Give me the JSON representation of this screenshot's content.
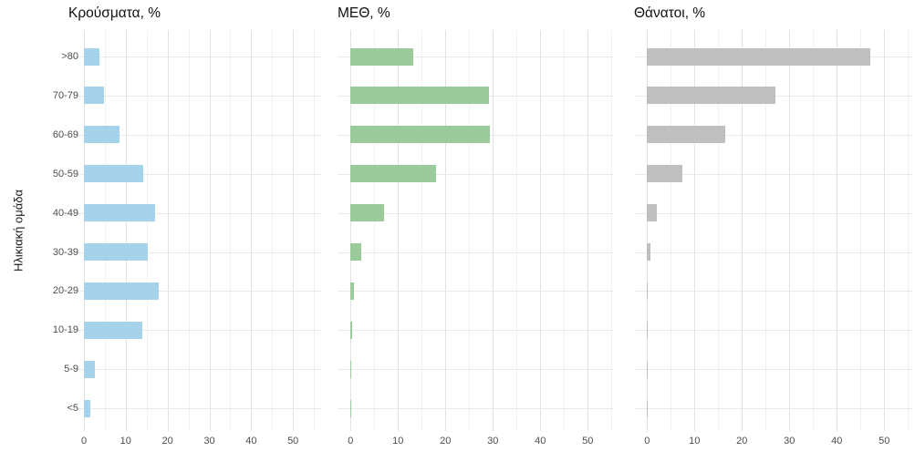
{
  "figure": {
    "y_axis_title": "Ηλικιακή ομάδα",
    "background_color": "#ffffff",
    "grid_major_color": "#e2e2e2",
    "grid_minor_color": "#f1f1f1",
    "axis_text_color": "#4d4d4d",
    "title_text_color": "#111111"
  },
  "chart_data": [
    {
      "type": "bar",
      "orientation": "horizontal",
      "title": "Κρούσματα, %",
      "bar_color": "#a6d2ea",
      "categories": [
        ">80",
        "70-79",
        "60-69",
        "50-59",
        "40-49",
        "30-39",
        "20-29",
        "10-19",
        "5-9",
        "<5"
      ],
      "values": [
        3.7,
        4.7,
        8.5,
        14.1,
        17.1,
        15.3,
        17.8,
        13.9,
        2.7,
        1.5
      ],
      "xlim": [
        0,
        55
      ],
      "x_ticks": [
        0,
        10,
        20,
        30,
        40,
        50
      ],
      "x_tick_labels": [
        "0",
        "10",
        "20",
        "30",
        "40",
        "50"
      ],
      "minor_grid_step": 5,
      "grid": true,
      "legend": "none",
      "show_y_labels": true
    },
    {
      "type": "bar",
      "orientation": "horizontal",
      "title": "ΜΕΘ, %",
      "bar_color": "#9bcb9a",
      "categories": [
        ">80",
        "70-79",
        "60-69",
        "50-59",
        "40-49",
        "30-39",
        "20-29",
        "10-19",
        "5-9",
        "<5"
      ],
      "values": [
        13.2,
        29.1,
        29.4,
        18,
        7.1,
        2.3,
        0.8,
        0.25,
        0.2,
        0.2
      ],
      "xlim": [
        0,
        55
      ],
      "x_ticks": [
        0,
        10,
        20,
        30,
        40,
        50
      ],
      "x_tick_labels": [
        "0",
        "10",
        "20",
        "30",
        "40",
        "50"
      ],
      "minor_grid_step": 5,
      "grid": true,
      "legend": "none",
      "show_y_labels": false
    },
    {
      "type": "bar",
      "orientation": "horizontal",
      "title": "Θάνατοι, %",
      "bar_color": "#bfbfbf",
      "categories": [
        ">80",
        "70-79",
        "60-69",
        "50-59",
        "40-49",
        "30-39",
        "20-29",
        "10-19",
        "5-9",
        "<5"
      ],
      "values": [
        47,
        27.1,
        16.5,
        7.4,
        2,
        0.8,
        0.2,
        0.2,
        0.05,
        0.15
      ],
      "xlim": [
        0,
        55
      ],
      "x_ticks": [
        0,
        10,
        20,
        30,
        40,
        50
      ],
      "x_tick_labels": [
        "0",
        "10",
        "20",
        "30",
        "40",
        "50"
      ],
      "minor_grid_step": 5,
      "grid": true,
      "legend": "none",
      "show_y_labels": false
    }
  ]
}
